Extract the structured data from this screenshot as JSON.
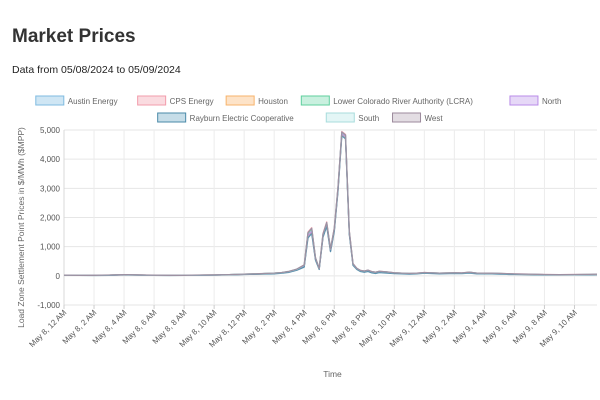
{
  "page": {
    "title": "Market Prices",
    "subtitle": "Data from 05/08/2024 to 05/09/2024"
  },
  "chart_data": {
    "type": "line",
    "xlabel": "Time",
    "ylabel": "Load Zone Settlement Point Prices in $/MWh ($MPP)",
    "ylim": [
      -1000,
      5000
    ],
    "yticks": [
      -1000,
      0,
      1000,
      2000,
      3000,
      4000,
      5000
    ],
    "ytick_labels": [
      "-1,000",
      "0",
      "1,000",
      "2,000",
      "3,000",
      "4,000",
      "5,000"
    ],
    "grid": true,
    "legend_position": "top",
    "x_hours": [
      0,
      1,
      2,
      3,
      4,
      5,
      6,
      7,
      8,
      9,
      10,
      11,
      12,
      13,
      14,
      14.5,
      15,
      15.5,
      16,
      16.25,
      16.5,
      16.75,
      17,
      17.25,
      17.5,
      17.75,
      18,
      18.25,
      18.5,
      18.75,
      19,
      19.25,
      19.5,
      19.75,
      20,
      20.25,
      20.5,
      20.75,
      21,
      21.5,
      22,
      22.5,
      23,
      23.5,
      24,
      25,
      26,
      26.5,
      27,
      27.5,
      28,
      28.5,
      29,
      29.5,
      30,
      31,
      32,
      33,
      34,
      35,
      35.5
    ],
    "x_tick_hours": [
      0,
      2,
      4,
      6,
      8,
      10,
      12,
      14,
      16,
      18,
      20,
      22,
      24,
      26,
      28,
      30,
      32,
      34
    ],
    "x_tick_labels": [
      "May 8, 12 AM",
      "May 8, 2 AM",
      "May 8, 4 AM",
      "May 8, 6 AM",
      "May 8, 8 AM",
      "May 8, 10 AM",
      "May 8, 12 PM",
      "May 8, 2 PM",
      "May 8, 4 PM",
      "May 8, 6 PM",
      "May 8, 8 PM",
      "May 8, 10 PM",
      "May 9, 12 AM",
      "May 9, 2 AM",
      "May 9, 4 AM",
      "May 9, 6 AM",
      "May 9, 8 AM",
      "May 9, 10 AM"
    ],
    "series": [
      {
        "name": "Austin Energy",
        "fill": "#cfe6f4",
        "color": "#7fbbe0",
        "values": [
          20,
          18,
          15,
          25,
          40,
          30,
          20,
          15,
          18,
          25,
          30,
          40,
          55,
          70,
          90,
          110,
          150,
          220,
          350,
          1450,
          1600,
          600,
          250,
          1400,
          1800,
          900,
          1600,
          3000,
          4900,
          4800,
          1500,
          400,
          250,
          180,
          160,
          190,
          140,
          120,
          150,
          130,
          100,
          90,
          80,
          85,
          110,
          90,
          100,
          95,
          120,
          90,
          85,
          90,
          80,
          70,
          60,
          50,
          40,
          35,
          40,
          45,
          50
        ]
      },
      {
        "name": "CPS Energy",
        "fill": "#fadbe0",
        "color": "#f29cab",
        "values": [
          20,
          18,
          15,
          25,
          40,
          30,
          20,
          15,
          18,
          25,
          30,
          40,
          55,
          70,
          90,
          110,
          150,
          220,
          380,
          1500,
          1650,
          620,
          260,
          1450,
          1850,
          920,
          1650,
          3050,
          4950,
          4850,
          1550,
          420,
          260,
          185,
          165,
          195,
          145,
          125,
          155,
          135,
          105,
          95,
          85,
          90,
          115,
          95,
          105,
          100,
          125,
          95,
          90,
          95,
          85,
          75,
          65,
          55,
          45,
          40,
          45,
          50,
          55
        ]
      },
      {
        "name": "Houston",
        "fill": "#fde3c8",
        "color": "#f7b36b",
        "values": [
          18,
          16,
          14,
          22,
          36,
          28,
          18,
          14,
          16,
          22,
          28,
          38,
          50,
          60,
          80,
          100,
          130,
          200,
          320,
          1350,
          1500,
          560,
          230,
          1350,
          1750,
          850,
          1550,
          2950,
          4850,
          4750,
          1450,
          380,
          240,
          170,
          150,
          180,
          130,
          110,
          140,
          120,
          95,
          85,
          75,
          80,
          100,
          85,
          95,
          90,
          110,
          85,
          80,
          85,
          75,
          65,
          55,
          45,
          38,
          32,
          38,
          42,
          46
        ]
      },
      {
        "name": "Lower Colorado River Authority (LCRA)",
        "fill": "#c9f0df",
        "color": "#5fcf9e",
        "values": [
          20,
          18,
          15,
          25,
          40,
          30,
          20,
          15,
          18,
          25,
          30,
          40,
          55,
          70,
          90,
          110,
          150,
          220,
          350,
          1450,
          1600,
          600,
          250,
          1400,
          1800,
          900,
          1600,
          3000,
          4900,
          4800,
          1500,
          400,
          250,
          180,
          160,
          190,
          140,
          120,
          150,
          130,
          100,
          90,
          80,
          85,
          110,
          90,
          100,
          95,
          120,
          90,
          85,
          90,
          80,
          70,
          60,
          50,
          40,
          35,
          40,
          45,
          50
        ]
      },
      {
        "name": "North",
        "fill": "#e6d8f7",
        "color": "#b98be8",
        "values": [
          18,
          16,
          14,
          22,
          36,
          28,
          18,
          14,
          16,
          22,
          28,
          38,
          50,
          62,
          82,
          100,
          135,
          205,
          330,
          1380,
          1520,
          570,
          235,
          1370,
          1770,
          860,
          1570,
          2970,
          4870,
          4770,
          1470,
          390,
          245,
          175,
          155,
          185,
          135,
          115,
          145,
          125,
          98,
          88,
          78,
          82,
          105,
          88,
          98,
          92,
          115,
          88,
          82,
          88,
          78,
          68,
          58,
          48,
          38,
          33,
          38,
          43,
          48
        ]
      },
      {
        "name": "Rayburn Electric Cooperative",
        "fill": "#c6dde8",
        "color": "#4a8aa8",
        "values": [
          15,
          14,
          12,
          20,
          32,
          25,
          15,
          12,
          14,
          20,
          25,
          35,
          45,
          55,
          70,
          90,
          120,
          190,
          300,
          1300,
          1450,
          540,
          220,
          1320,
          1700,
          830,
          1520,
          2900,
          4800,
          4700,
          1420,
          360,
          220,
          150,
          120,
          150,
          100,
          80,
          110,
          95,
          75,
          70,
          60,
          65,
          90,
          70,
          80,
          75,
          95,
          70,
          65,
          70,
          60,
          50,
          45,
          38,
          30,
          28,
          32,
          36,
          40
        ]
      },
      {
        "name": "South",
        "fill": "#e3f6f6",
        "color": "#a8dcdc",
        "values": [
          20,
          18,
          15,
          25,
          40,
          30,
          20,
          15,
          18,
          25,
          30,
          40,
          55,
          70,
          90,
          110,
          150,
          220,
          360,
          1470,
          1620,
          610,
          255,
          1420,
          1820,
          910,
          1620,
          3020,
          4920,
          4820,
          1520,
          410,
          255,
          182,
          162,
          192,
          142,
          122,
          152,
          132,
          102,
          92,
          82,
          87,
          112,
          92,
          102,
          97,
          122,
          92,
          87,
          92,
          82,
          72,
          62,
          52,
          42,
          37,
          42,
          47,
          52
        ]
      },
      {
        "name": "West",
        "fill": "#e3dde3",
        "color": "#9c8a9c",
        "values": [
          22,
          20,
          17,
          27,
          42,
          32,
          22,
          17,
          20,
          27,
          32,
          42,
          58,
          72,
          95,
          115,
          155,
          230,
          370,
          1480,
          1630,
          615,
          258,
          1430,
          1830,
          915,
          1630,
          3030,
          4930,
          4830,
          1530,
          415,
          258,
          185,
          165,
          195,
          145,
          125,
          155,
          135,
          105,
          95,
          85,
          90,
          115,
          95,
          105,
          100,
          125,
          95,
          90,
          95,
          85,
          75,
          65,
          55,
          45,
          40,
          45,
          50,
          55
        ]
      }
    ]
  }
}
